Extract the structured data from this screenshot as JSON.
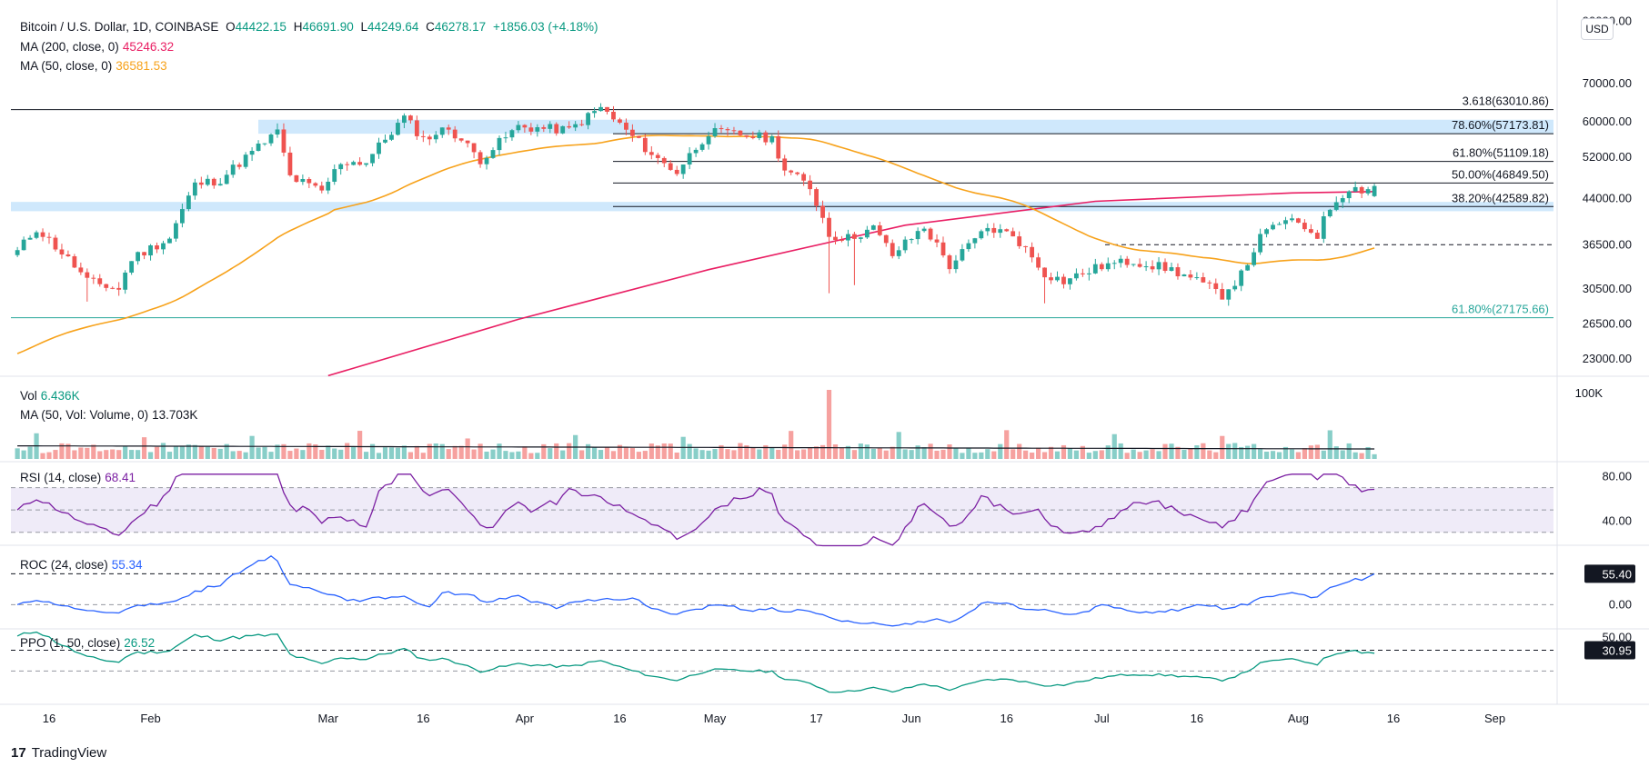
{
  "header": {
    "symbol": "Bitcoin / U.S. Dollar, 1D, COINBASE",
    "o_label": "O",
    "o": "44422.15",
    "h_label": "H",
    "h": "46691.90",
    "l_label": "L",
    "l": "44249.64",
    "c_label": "C",
    "c": "46278.17",
    "change": "+1856.03 (+4.18%)",
    "ma200_label": "MA (200, close, 0)",
    "ma200": "45246.32",
    "ma50_label": "MA (50, close, 0)",
    "ma50": "36581.53"
  },
  "currency_button": "USD",
  "brand": "TradingView",
  "colors": {
    "up": "#26a69a",
    "down": "#ef5350",
    "ma200": "#e91e63",
    "ma50": "#f7a21b",
    "fib_ref": "#26a69a",
    "rsi": "#7b1fa2",
    "roc": "#2962ff",
    "ppo": "#089981",
    "zone": "#bbdefb"
  },
  "chart_data": [
    {
      "type": "candlestick",
      "title": "Bitcoin / U.S. Dollar, 1D, COINBASE",
      "y_ticks": [
        "90000.00",
        "70000.00",
        "60000.00",
        "52000.00",
        "44000.00",
        "36500.00",
        "30500.00",
        "26500.00",
        "23000.00"
      ],
      "ylim": [
        21500,
        90000
      ],
      "scale": "log",
      "x_ticks": [
        "16",
        "Feb",
        "Mar",
        "16",
        "Apr",
        "16",
        "May",
        "17",
        "Jun",
        "16",
        "Jul",
        "16",
        "Aug",
        "16",
        "Sep"
      ],
      "date_range": [
        "2021-01-11",
        "2021-08-13"
      ],
      "last_close": 46278.17,
      "fib_levels": [
        {
          "label": "3.618(63010.86)",
          "value": 63010.86
        },
        {
          "label": "78.60%(57173.81)",
          "value": 57173.81
        },
        {
          "label": "61.80%(51109.18)",
          "value": 51109.18
        },
        {
          "label": "50.00%(46849.50)",
          "value": 46849.5
        },
        {
          "label": "38.20%(42589.82)",
          "value": 42589.82
        },
        {
          "label": "61.80%(27175.66)",
          "value": 27175.66
        }
      ],
      "support_line": 36500,
      "zones": [
        [
          41800,
          43400
        ],
        [
          57173.81,
          60500
        ]
      ],
      "series": [
        {
          "name": "MA (200, close, 0)",
          "last": 45246.32
        },
        {
          "name": "MA (50, close, 0)",
          "last": 36581.53
        }
      ]
    },
    {
      "type": "bar",
      "title": "Vol",
      "value_label": "6.436K",
      "ma_label": "MA (50, Vol: Volume, 0)",
      "ma_value": "13.703K",
      "y_ticks": [
        "100K"
      ],
      "ylim": [
        0,
        100000
      ]
    },
    {
      "type": "line",
      "title": "RSI (14, close)",
      "value": "68.41",
      "y_ticks": [
        "80.00",
        "40.00"
      ],
      "ylim": [
        20,
        90
      ],
      "band": [
        30,
        70
      ]
    },
    {
      "type": "line",
      "title": "ROC (24, close)",
      "value": "55.34",
      "y_ticks": [
        "55.40",
        "0.00"
      ],
      "ylim": [
        -40,
        100
      ]
    },
    {
      "type": "line",
      "title": "PPO (1, 50, close)",
      "value": "26.52",
      "y_ticks": [
        "50.00",
        "30.95"
      ],
      "ylim": [
        -40,
        60
      ]
    }
  ]
}
